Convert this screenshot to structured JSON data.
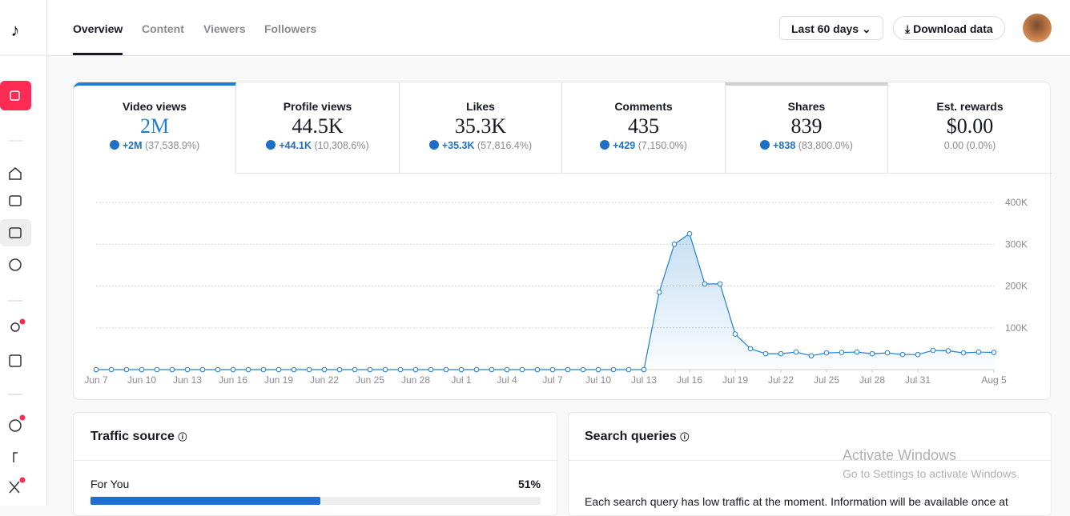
{
  "nav": {
    "tabs": [
      "Overview",
      "Content",
      "Viewers",
      "Followers"
    ],
    "date_range": "Last 60 days",
    "download": "Download data"
  },
  "metrics": [
    {
      "label": "Video views",
      "value": "2M",
      "change": "+2M",
      "percent": "(37,538.9%)"
    },
    {
      "label": "Profile views",
      "value": "44.5K",
      "change": "+44.1K",
      "percent": "(10,308.6%)"
    },
    {
      "label": "Likes",
      "value": "35.3K",
      "change": "+35.3K",
      "percent": "(57,816.4%)"
    },
    {
      "label": "Comments",
      "value": "435",
      "change": "+429",
      "percent": "(7,150.0%)"
    },
    {
      "label": "Shares",
      "value": "839",
      "change": "+838",
      "percent": "(83,800.0%)"
    },
    {
      "label": "Est. rewards",
      "value": "$0.00",
      "percent": "0.00 (0.0%)"
    }
  ],
  "chart_data": {
    "type": "line",
    "color": "#1f7fd1",
    "categories": [
      "Jun 7",
      null,
      null,
      "Jun 10",
      null,
      null,
      "Jun 13",
      null,
      null,
      "Jun 16",
      null,
      null,
      "Jun 19",
      null,
      null,
      "Jun 22",
      null,
      null,
      "Jun 25",
      null,
      null,
      "Jun 28",
      null,
      null,
      "Jul 1",
      null,
      null,
      "Jul 4",
      null,
      null,
      "Jul 7",
      null,
      null,
      "Jul 10",
      null,
      null,
      "Jul 13",
      null,
      null,
      "Jul 16",
      null,
      null,
      "Jul 19",
      null,
      null,
      "Jul 22",
      null,
      null,
      "Jul 25",
      null,
      null,
      "Jul 28",
      null,
      null,
      "Jul 31",
      null,
      null,
      null,
      null,
      "Aug 5"
    ],
    "values": [
      0,
      0,
      0,
      0,
      0,
      0,
      0,
      0,
      0,
      0,
      0,
      0,
      0,
      0,
      0,
      0,
      0,
      0,
      0,
      0,
      0,
      0,
      0,
      0,
      0,
      0,
      0,
      0,
      0,
      0,
      0,
      0,
      0,
      0,
      0,
      0,
      0,
      185000,
      300000,
      325000,
      205000,
      205000,
      85000,
      50000,
      38000,
      38000,
      42000,
      33000,
      40000,
      41000,
      42000,
      38000,
      40000,
      36000,
      36000,
      46000,
      45000,
      40000,
      42000,
      41000
    ],
    "ylim": [
      0,
      400000
    ],
    "yticks": [
      {
        "value": 100000,
        "label": "100K"
      },
      {
        "value": 200000,
        "label": "200K"
      },
      {
        "value": 300000,
        "label": "300K"
      },
      {
        "value": 400000,
        "label": "400K"
      }
    ],
    "grid": true
  },
  "traffic": {
    "title": "Traffic source",
    "items": [
      {
        "name": "For You",
        "value": 51,
        "value_label": "51%"
      }
    ]
  },
  "search": {
    "title": "Search queries",
    "text": "Each search query has low traffic at the moment. Information will be available once at"
  },
  "overlay": {
    "title": "Activate Windows",
    "text": "Go to Settings to activate Windows."
  }
}
